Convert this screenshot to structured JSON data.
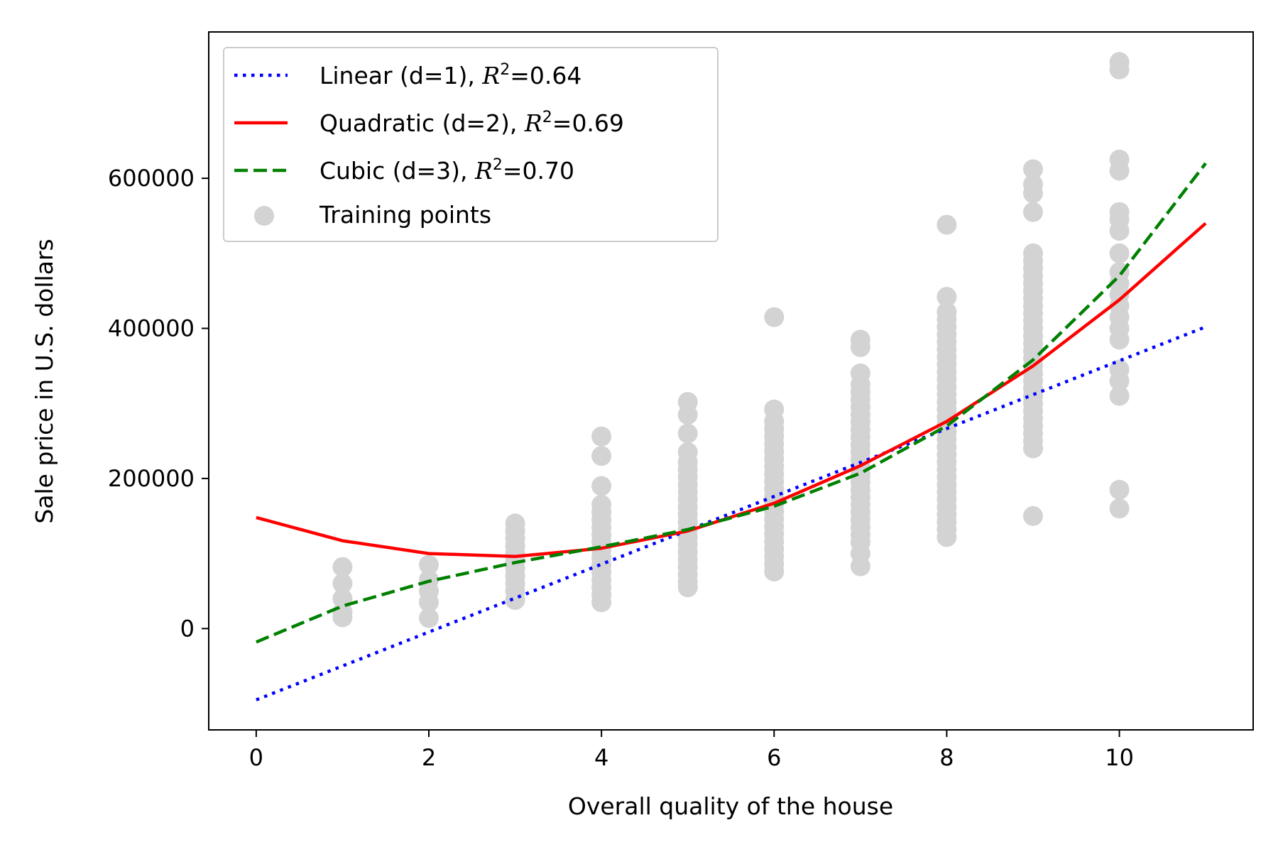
{
  "chart_data": {
    "type": "scatter",
    "xlabel": "Overall quality of the house",
    "ylabel": "Sale price in U.S. dollars",
    "xlim": [
      -0.55,
      11.55
    ],
    "ylim": [
      -135000,
      795000
    ],
    "xticks": [
      0,
      2,
      4,
      6,
      8,
      10
    ],
    "yticks": [
      0,
      200000,
      400000,
      600000
    ],
    "grid": false,
    "legend_position": "top-left",
    "series": [
      {
        "name": "Linear (d=1), R²=0.64",
        "legend_main": "Linear (d=1), ",
        "legend_r2": "0.64",
        "type": "line",
        "style": "dotted",
        "color": "#0000ff",
        "x": [
          0,
          11
        ],
        "y": [
          -95000,
          402000
        ]
      },
      {
        "name": "Quadratic (d=2), R²=0.69",
        "legend_main": "Quadratic (d=2), ",
        "legend_r2": "0.69",
        "type": "line",
        "style": "solid",
        "color": "#ff0000",
        "x": [
          0,
          1,
          2,
          3,
          4,
          5,
          6,
          7,
          8,
          9,
          10,
          11
        ],
        "y": [
          148000,
          117000,
          100000,
          96000,
          107000,
          130000,
          167000,
          217000,
          276000,
          350000,
          438000,
          540000
        ]
      },
      {
        "name": "Cubic (d=3), R²=0.70",
        "legend_main": "Cubic (d=3), ",
        "legend_r2": "0.70",
        "type": "line",
        "style": "dashed",
        "color": "#008000",
        "x": [
          0,
          1,
          2,
          3,
          4,
          5,
          6,
          7,
          8,
          9,
          10,
          11
        ],
        "y": [
          -18000,
          30000,
          63000,
          88000,
          109000,
          132000,
          163000,
          207000,
          270000,
          358000,
          470000,
          620000
        ]
      },
      {
        "name": "Training points",
        "type": "scatter",
        "color": "#d3d3d3",
        "points": [
          [
            1,
            15000
          ],
          [
            1,
            22000
          ],
          [
            1,
            40000
          ],
          [
            1,
            60000
          ],
          [
            1,
            82000
          ],
          [
            2,
            14000
          ],
          [
            2,
            35000
          ],
          [
            2,
            50000
          ],
          [
            2,
            65000
          ],
          [
            2,
            85000
          ],
          [
            3,
            38000
          ],
          [
            3,
            50000
          ],
          [
            3,
            60000
          ],
          [
            3,
            70000
          ],
          [
            3,
            80000
          ],
          [
            3,
            90000
          ],
          [
            3,
            100000
          ],
          [
            3,
            110000
          ],
          [
            3,
            120000
          ],
          [
            3,
            130000
          ],
          [
            3,
            140000
          ],
          [
            4,
            35000
          ],
          [
            4,
            45000
          ],
          [
            4,
            55000
          ],
          [
            4,
            65000
          ],
          [
            4,
            75000
          ],
          [
            4,
            85000
          ],
          [
            4,
            95000
          ],
          [
            4,
            105000
          ],
          [
            4,
            115000
          ],
          [
            4,
            125000
          ],
          [
            4,
            135000
          ],
          [
            4,
            145000
          ],
          [
            4,
            155000
          ],
          [
            4,
            165000
          ],
          [
            4,
            190000
          ],
          [
            4,
            230000
          ],
          [
            4,
            256000
          ],
          [
            5,
            55000
          ],
          [
            5,
            62000
          ],
          [
            5,
            72000
          ],
          [
            5,
            82000
          ],
          [
            5,
            92000
          ],
          [
            5,
            102000
          ],
          [
            5,
            112000
          ],
          [
            5,
            122000
          ],
          [
            5,
            132000
          ],
          [
            5,
            142000
          ],
          [
            5,
            152000
          ],
          [
            5,
            162000
          ],
          [
            5,
            172000
          ],
          [
            5,
            182000
          ],
          [
            5,
            192000
          ],
          [
            5,
            202000
          ],
          [
            5,
            212000
          ],
          [
            5,
            222000
          ],
          [
            5,
            235000
          ],
          [
            5,
            260000
          ],
          [
            5,
            285000
          ],
          [
            5,
            302000
          ],
          [
            6,
            76000
          ],
          [
            6,
            86000
          ],
          [
            6,
            96000
          ],
          [
            6,
            106000
          ],
          [
            6,
            116000
          ],
          [
            6,
            126000
          ],
          [
            6,
            136000
          ],
          [
            6,
            146000
          ],
          [
            6,
            156000
          ],
          [
            6,
            166000
          ],
          [
            6,
            176000
          ],
          [
            6,
            186000
          ],
          [
            6,
            196000
          ],
          [
            6,
            206000
          ],
          [
            6,
            216000
          ],
          [
            6,
            226000
          ],
          [
            6,
            236000
          ],
          [
            6,
            246000
          ],
          [
            6,
            256000
          ],
          [
            6,
            266000
          ],
          [
            6,
            276000
          ],
          [
            6,
            292000
          ],
          [
            6,
            415000
          ],
          [
            7,
            83000
          ],
          [
            7,
            100000
          ],
          [
            7,
            115000
          ],
          [
            7,
            125000
          ],
          [
            7,
            135000
          ],
          [
            7,
            145000
          ],
          [
            7,
            155000
          ],
          [
            7,
            165000
          ],
          [
            7,
            175000
          ],
          [
            7,
            185000
          ],
          [
            7,
            195000
          ],
          [
            7,
            205000
          ],
          [
            7,
            215000
          ],
          [
            7,
            225000
          ],
          [
            7,
            235000
          ],
          [
            7,
            245000
          ],
          [
            7,
            255000
          ],
          [
            7,
            265000
          ],
          [
            7,
            275000
          ],
          [
            7,
            285000
          ],
          [
            7,
            295000
          ],
          [
            7,
            305000
          ],
          [
            7,
            315000
          ],
          [
            7,
            325000
          ],
          [
            7,
            340000
          ],
          [
            7,
            375000
          ],
          [
            7,
            385000
          ],
          [
            8,
            122000
          ],
          [
            8,
            132000
          ],
          [
            8,
            142000
          ],
          [
            8,
            152000
          ],
          [
            8,
            162000
          ],
          [
            8,
            172000
          ],
          [
            8,
            182000
          ],
          [
            8,
            192000
          ],
          [
            8,
            202000
          ],
          [
            8,
            212000
          ],
          [
            8,
            222000
          ],
          [
            8,
            232000
          ],
          [
            8,
            242000
          ],
          [
            8,
            252000
          ],
          [
            8,
            262000
          ],
          [
            8,
            272000
          ],
          [
            8,
            282000
          ],
          [
            8,
            292000
          ],
          [
            8,
            302000
          ],
          [
            8,
            312000
          ],
          [
            8,
            322000
          ],
          [
            8,
            332000
          ],
          [
            8,
            342000
          ],
          [
            8,
            352000
          ],
          [
            8,
            362000
          ],
          [
            8,
            372000
          ],
          [
            8,
            382000
          ],
          [
            8,
            392000
          ],
          [
            8,
            402000
          ],
          [
            8,
            412000
          ],
          [
            8,
            422000
          ],
          [
            8,
            442000
          ],
          [
            8,
            538000
          ],
          [
            9,
            150000
          ],
          [
            9,
            240000
          ],
          [
            9,
            250000
          ],
          [
            9,
            260000
          ],
          [
            9,
            270000
          ],
          [
            9,
            280000
          ],
          [
            9,
            290000
          ],
          [
            9,
            300000
          ],
          [
            9,
            310000
          ],
          [
            9,
            320000
          ],
          [
            9,
            330000
          ],
          [
            9,
            340000
          ],
          [
            9,
            350000
          ],
          [
            9,
            360000
          ],
          [
            9,
            370000
          ],
          [
            9,
            380000
          ],
          [
            9,
            390000
          ],
          [
            9,
            400000
          ],
          [
            9,
            410000
          ],
          [
            9,
            420000
          ],
          [
            9,
            430000
          ],
          [
            9,
            440000
          ],
          [
            9,
            450000
          ],
          [
            9,
            460000
          ],
          [
            9,
            470000
          ],
          [
            9,
            480000
          ],
          [
            9,
            490000
          ],
          [
            9,
            500000
          ],
          [
            9,
            555000
          ],
          [
            9,
            580000
          ],
          [
            9,
            592000
          ],
          [
            9,
            612000
          ],
          [
            10,
            160000
          ],
          [
            10,
            185000
          ],
          [
            10,
            310000
          ],
          [
            10,
            330000
          ],
          [
            10,
            345000
          ],
          [
            10,
            385000
          ],
          [
            10,
            400000
          ],
          [
            10,
            415000
          ],
          [
            10,
            430000
          ],
          [
            10,
            445000
          ],
          [
            10,
            460000
          ],
          [
            10,
            475000
          ],
          [
            10,
            500000
          ],
          [
            10,
            530000
          ],
          [
            10,
            545000
          ],
          [
            10,
            555000
          ],
          [
            10,
            610000
          ],
          [
            10,
            625000
          ],
          [
            10,
            745000
          ],
          [
            10,
            755000
          ]
        ]
      }
    ]
  }
}
